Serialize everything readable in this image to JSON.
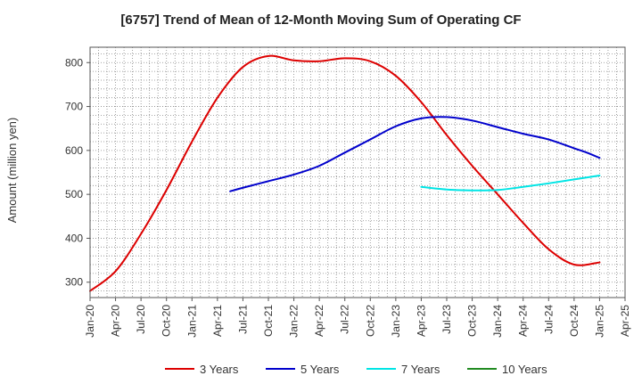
{
  "chart_data": {
    "type": "line",
    "title": "[6757]  Trend of Mean of 12-Month Moving Sum of Operating CF",
    "xlabel": "",
    "ylabel": "Amount (million yen)",
    "ylim": [
      265,
      835
    ],
    "yticks": [
      300,
      400,
      500,
      600,
      700,
      800
    ],
    "x_tick_labels": [
      "Jan-20",
      "Apr-20",
      "Jul-20",
      "Oct-20",
      "Jan-21",
      "Apr-21",
      "Jul-21",
      "Oct-21",
      "Jan-22",
      "Apr-22",
      "Jul-22",
      "Oct-22",
      "Jan-23",
      "Apr-23",
      "Jul-23",
      "Oct-23",
      "Jan-24",
      "Apr-24",
      "Jul-24",
      "Oct-24",
      "Jan-25",
      "Apr-25"
    ],
    "grid": true,
    "legend_position": "bottom",
    "series": [
      {
        "name": "3 Years",
        "color": "#dd0000",
        "x": [
          0,
          1,
          2,
          3,
          4,
          5,
          6,
          7,
          8,
          9,
          10,
          11,
          12,
          13,
          14,
          15,
          16,
          17,
          18,
          19,
          20
        ],
        "values": [
          280,
          325,
          410,
          510,
          620,
          720,
          790,
          815,
          805,
          803,
          810,
          803,
          770,
          710,
          635,
          565,
          500,
          435,
          375,
          340,
          345
        ]
      },
      {
        "name": "5 Years",
        "color": "#0000cc",
        "x": [
          5.5,
          6,
          7,
          8,
          9,
          10,
          11,
          12,
          13,
          14,
          15,
          16,
          17,
          18,
          19,
          19.5,
          20
        ],
        "values": [
          507,
          515,
          530,
          545,
          565,
          595,
          625,
          655,
          673,
          676,
          668,
          653,
          638,
          625,
          605,
          595,
          583
        ]
      },
      {
        "name": "7 Years",
        "color": "#00e5e5",
        "x": [
          13,
          14,
          15,
          16,
          17,
          18,
          19,
          20
        ],
        "values": [
          517,
          511,
          509,
          510,
          517,
          525,
          534,
          543
        ]
      },
      {
        "name": "10 Years",
        "color": "#228b22",
        "x": [],
        "values": []
      }
    ]
  }
}
